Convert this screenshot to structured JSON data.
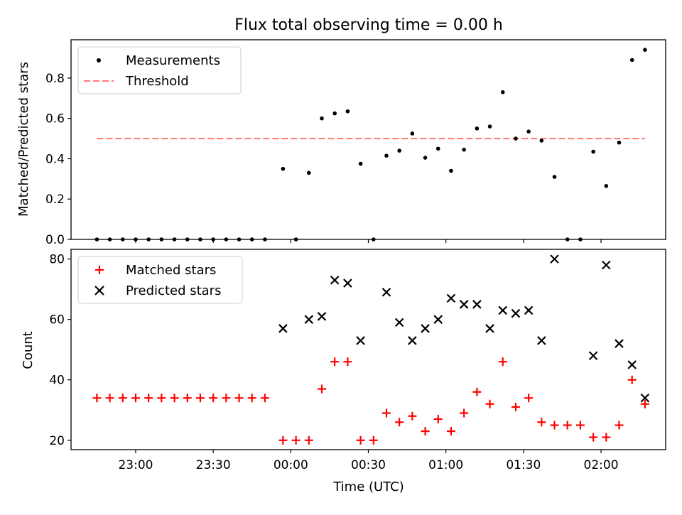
{
  "chart_data": [
    {
      "type": "scatter",
      "title": "Flux total observing time = 0.00 h",
      "xlabel": "",
      "ylabel": "Matched/Predicted stars",
      "xlim": [
        "22:35",
        "02:25"
      ],
      "ylim": [
        0,
        0.99
      ],
      "yticks": [
        0.0,
        0.2,
        0.4,
        0.6,
        0.8
      ],
      "ytick_labels": [
        "0.0",
        "0.2",
        "0.4",
        "0.6",
        "0.8"
      ],
      "grid": false,
      "legend_position": "upper-left",
      "series": [
        {
          "name": "Measurements",
          "marker": "dot",
          "color": "#000000",
          "points": [
            [
              "22:45",
              0.0
            ],
            [
              "22:50",
              0.0
            ],
            [
              "22:55",
              0.0
            ],
            [
              "23:00",
              0.0
            ],
            [
              "23:05",
              0.0
            ],
            [
              "23:10",
              0.0
            ],
            [
              "23:15",
              0.0
            ],
            [
              "23:20",
              0.0
            ],
            [
              "23:25",
              0.0
            ],
            [
              "23:30",
              0.0
            ],
            [
              "23:35",
              0.0
            ],
            [
              "23:40",
              0.0
            ],
            [
              "23:45",
              0.0
            ],
            [
              "23:50",
              0.0
            ],
            [
              "23:57",
              0.35
            ],
            [
              "00:02",
              0.0
            ],
            [
              "00:07",
              0.33
            ],
            [
              "00:12",
              0.6
            ],
            [
              "00:17",
              0.625
            ],
            [
              "00:22",
              0.635
            ],
            [
              "00:27",
              0.375
            ],
            [
              "00:32",
              0.0
            ],
            [
              "00:37",
              0.415
            ],
            [
              "00:42",
              0.44
            ],
            [
              "00:47",
              0.525
            ],
            [
              "00:52",
              0.405
            ],
            [
              "00:57",
              0.45
            ],
            [
              "01:02",
              0.34
            ],
            [
              "01:07",
              0.445
            ],
            [
              "01:12",
              0.55
            ],
            [
              "01:17",
              0.56
            ],
            [
              "01:22",
              0.73
            ],
            [
              "01:27",
              0.5
            ],
            [
              "01:32",
              0.535
            ],
            [
              "01:37",
              0.49
            ],
            [
              "01:42",
              0.31
            ],
            [
              "01:47",
              0.0
            ],
            [
              "01:52",
              0.0
            ],
            [
              "01:57",
              0.435
            ],
            [
              "02:02",
              0.265
            ],
            [
              "02:07",
              0.48
            ],
            [
              "02:12",
              0.89
            ],
            [
              "02:17",
              0.94
            ]
          ]
        },
        {
          "name": "Threshold",
          "marker": "dashed-line",
          "color": "#ff7f7f",
          "points": [
            [
              "22:45",
              0.5
            ],
            [
              "02:17",
              0.5
            ]
          ]
        }
      ]
    },
    {
      "type": "scatter",
      "title": "",
      "xlabel": "Time (UTC)",
      "ylabel": "Count",
      "xlim": [
        "22:35",
        "02:25"
      ],
      "xticks": [
        "23:00",
        "23:30",
        "00:00",
        "00:30",
        "01:00",
        "01:30",
        "02:00"
      ],
      "xtick_labels": [
        "23:00",
        "23:30",
        "00:00",
        "00:30",
        "01:00",
        "01:30",
        "02:00"
      ],
      "ylim": [
        16.9,
        83.2
      ],
      "yticks": [
        20,
        40,
        60,
        80
      ],
      "ytick_labels": [
        "20",
        "40",
        "60",
        "80"
      ],
      "grid": false,
      "legend_position": "upper-left",
      "series": [
        {
          "name": "Matched stars",
          "marker": "plus",
          "color": "#ff0000",
          "points": [
            [
              "22:45",
              34
            ],
            [
              "22:50",
              34
            ],
            [
              "22:55",
              34
            ],
            [
              "23:00",
              34
            ],
            [
              "23:05",
              34
            ],
            [
              "23:10",
              34
            ],
            [
              "23:15",
              34
            ],
            [
              "23:20",
              34
            ],
            [
              "23:25",
              34
            ],
            [
              "23:30",
              34
            ],
            [
              "23:35",
              34
            ],
            [
              "23:40",
              34
            ],
            [
              "23:45",
              34
            ],
            [
              "23:50",
              34
            ],
            [
              "23:57",
              20
            ],
            [
              "00:02",
              20
            ],
            [
              "00:07",
              20
            ],
            [
              "00:12",
              37
            ],
            [
              "00:17",
              46
            ],
            [
              "00:22",
              46
            ],
            [
              "00:27",
              20
            ],
            [
              "00:32",
              20
            ],
            [
              "00:37",
              29
            ],
            [
              "00:42",
              26
            ],
            [
              "00:47",
              28
            ],
            [
              "00:52",
              23
            ],
            [
              "00:57",
              27
            ],
            [
              "01:02",
              23
            ],
            [
              "01:07",
              29
            ],
            [
              "01:12",
              36
            ],
            [
              "01:17",
              32
            ],
            [
              "01:22",
              46
            ],
            [
              "01:27",
              31
            ],
            [
              "01:32",
              34
            ],
            [
              "01:37",
              26
            ],
            [
              "01:42",
              25
            ],
            [
              "01:47",
              25
            ],
            [
              "01:52",
              25
            ],
            [
              "01:57",
              21
            ],
            [
              "02:02",
              21
            ],
            [
              "02:07",
              25
            ],
            [
              "02:12",
              40
            ],
            [
              "02:17",
              32
            ]
          ]
        },
        {
          "name": "Predicted stars",
          "marker": "x",
          "color": "#000000",
          "points": [
            [
              "23:57",
              57
            ],
            [
              "00:07",
              60
            ],
            [
              "00:12",
              61
            ],
            [
              "00:17",
              73
            ],
            [
              "00:22",
              72
            ],
            [
              "00:27",
              53
            ],
            [
              "00:37",
              69
            ],
            [
              "00:42",
              59
            ],
            [
              "00:47",
              53
            ],
            [
              "00:52",
              57
            ],
            [
              "00:57",
              60
            ],
            [
              "01:02",
              67
            ],
            [
              "01:07",
              65
            ],
            [
              "01:12",
              65
            ],
            [
              "01:17",
              57
            ],
            [
              "01:22",
              63
            ],
            [
              "01:27",
              62
            ],
            [
              "01:32",
              63
            ],
            [
              "01:37",
              53
            ],
            [
              "01:42",
              80
            ],
            [
              "01:57",
              48
            ],
            [
              "02:02",
              78
            ],
            [
              "02:07",
              52
            ],
            [
              "02:12",
              45
            ],
            [
              "02:17",
              34
            ]
          ]
        }
      ]
    }
  ]
}
